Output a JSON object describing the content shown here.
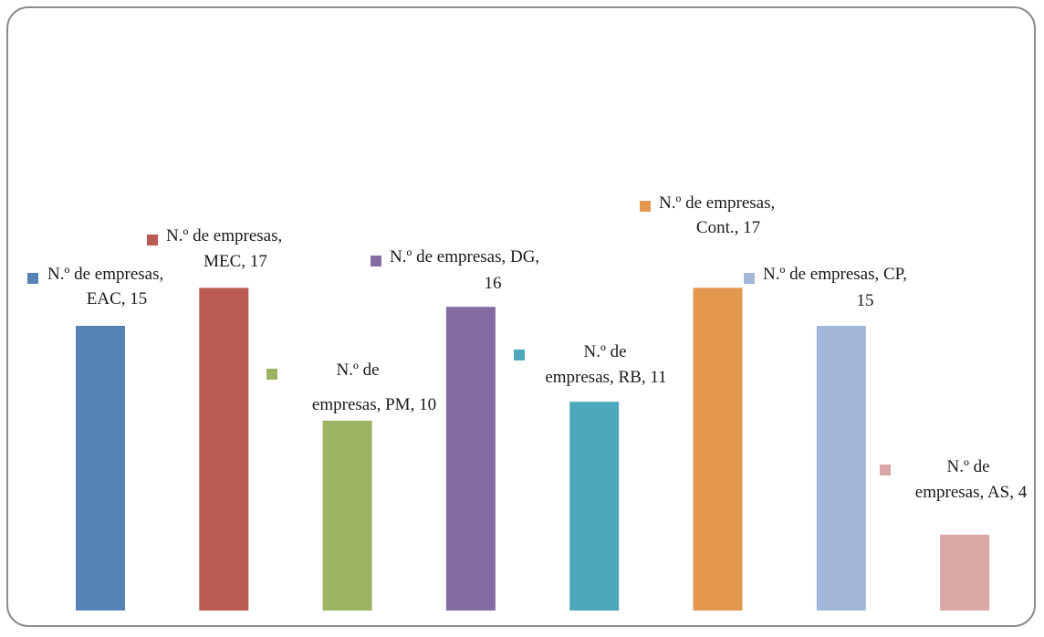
{
  "chart_data": {
    "type": "bar",
    "title": "",
    "xlabel": "",
    "ylabel": "",
    "ylim": [
      0,
      17
    ],
    "series_name": "N.º de empresas",
    "categories": [
      "EAC",
      "MEC",
      "PM",
      "DG",
      "RB",
      "Cont.",
      "CP",
      "AS"
    ],
    "values": [
      15,
      17,
      10,
      16,
      11,
      17,
      15,
      4
    ],
    "colors": [
      "#5583b6",
      "#b95b53",
      "#9cb361",
      "#826ca1",
      "#4ea8bc",
      "#e3964e",
      "#a3b7d9",
      "#dba6a6"
    ],
    "data_labels": [
      [
        "N.º de empresas,",
        "EAC, 15"
      ],
      [
        "N.º de empresas,",
        "MEC, 17"
      ],
      [
        "N.º de",
        "empresas, PM, 10"
      ],
      [
        "N.º de empresas, DG,",
        "16"
      ],
      [
        "N.º de",
        "empresas, RB, 11"
      ],
      [
        "N.º de empresas,",
        "Cont., 17"
      ],
      [
        "N.º de empresas, CP,",
        "15"
      ],
      [
        "N.º de",
        "empresas, AS, 4"
      ]
    ],
    "grid": false,
    "legend": "none"
  }
}
